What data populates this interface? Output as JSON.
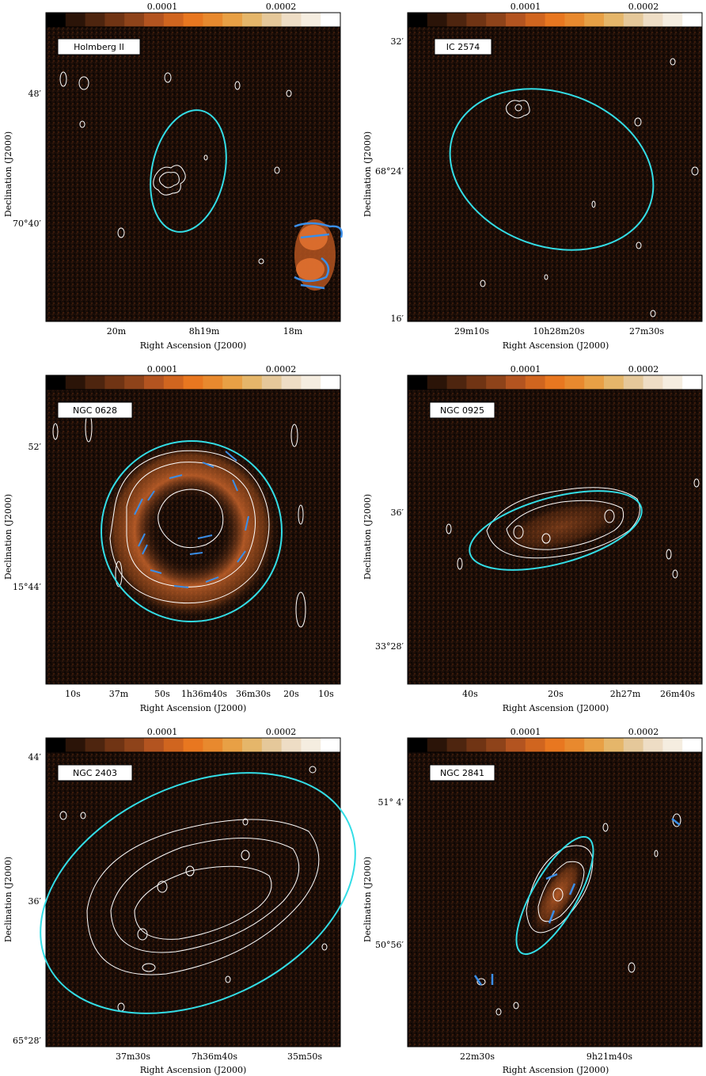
{
  "figure": {
    "colorbar_labels": [
      "0.0001",
      "0.0002"
    ],
    "xlabel": "Right Ascension (J2000)",
    "ylabel": "Declination (J2000)",
    "colors": {
      "background": "#1a0d07",
      "emission": "#e07030",
      "contour": "#ffffff",
      "beam_ellipse": "#33dde6",
      "vector": "#3a8ee8",
      "colorbar": [
        "#000000",
        "#2b1408",
        "#4e250f",
        "#703414",
        "#8e431a",
        "#b35420",
        "#d0651f",
        "#e87720",
        "#e8892e",
        "#e8a045",
        "#e5b66a",
        "#e5c89a",
        "#eeddc5",
        "#f5ede0",
        "#ffffff"
      ]
    }
  },
  "panels": [
    {
      "name": "Holmberg II",
      "y_ticks": [
        "48′",
        "70°40′"
      ],
      "x_ticks": [
        "20m",
        "8h19m",
        "18m"
      ],
      "extra_bottom_tick": ""
    },
    {
      "name": "IC 2574",
      "y_ticks": [
        "32′",
        "68°24′",
        "16′"
      ],
      "x_ticks": [
        "29m10s",
        "10h28m20s",
        "27m30s"
      ],
      "extra_bottom_tick": ""
    },
    {
      "name": "NGC 0628",
      "y_ticks": [
        "52′",
        "15°44′"
      ],
      "x_ticks": [
        "10s",
        "37m",
        "50s",
        "1h36m40s",
        "36m30s",
        "20s",
        "10s"
      ],
      "extra_bottom_tick": ""
    },
    {
      "name": "NGC 0925",
      "y_ticks": [
        "36′",
        "33°28′"
      ],
      "x_ticks": [
        "40s",
        "20s",
        "2h27m",
        "26m40s"
      ],
      "extra_bottom_tick": ""
    },
    {
      "name": "NGC 2403",
      "y_ticks": [
        "44′",
        "36′",
        "65°28′"
      ],
      "x_ticks": [
        "37m30s",
        "7h36m40s",
        "35m50s"
      ],
      "extra_bottom_tick": ""
    },
    {
      "name": "NGC 2841",
      "y_ticks": [
        "51° 4′",
        "50°56′"
      ],
      "x_ticks": [
        "22m30s",
        "9h21m40s"
      ],
      "extra_bottom_tick": ""
    }
  ]
}
